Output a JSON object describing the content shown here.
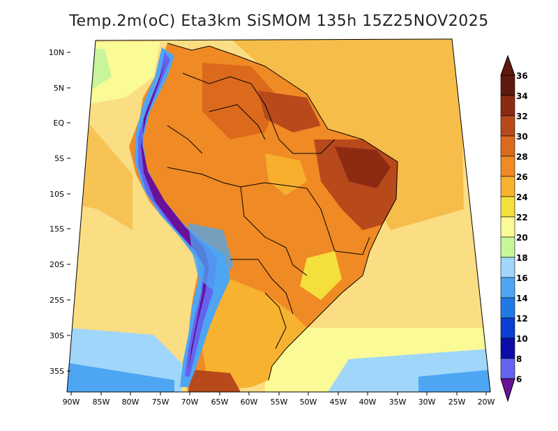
{
  "title": "Temp.2m(oC) Eta3km SiSMOM 135h 15Z25NOV2025",
  "lat_ticks": [
    "10N",
    "5N",
    "EQ",
    "5S",
    "10S",
    "15S",
    "20S",
    "25S",
    "30S",
    "35S"
  ],
  "lon_ticks": [
    "90W",
    "85W",
    "80W",
    "75W",
    "70W",
    "65W",
    "60W",
    "55W",
    "50W",
    "45W",
    "40W",
    "35W",
    "30W",
    "25W",
    "20W"
  ],
  "colorbar": {
    "labels": [
      "6",
      "8",
      "10",
      "12",
      "14",
      "16",
      "18",
      "20",
      "22",
      "24",
      "26",
      "28",
      "30",
      "32",
      "34",
      "36"
    ],
    "colors": [
      "#6a1199",
      "#9a3fcf",
      "#6464f0",
      "#0c0ca8",
      "#0a3fd1",
      "#1f7ae6",
      "#4ea6f2",
      "#9fd6fa",
      "#c9f59a",
      "#fafa96",
      "#f5df3c",
      "#f7b22f",
      "#f08a25",
      "#dc6a1c",
      "#b8491b",
      "#8c2a12",
      "#5e1a0c"
    ]
  },
  "colors": {
    "ocean": "#fbdd84",
    "ocean_north": "#f6bd4a",
    "ocean_south_cool": "#9fd6fa",
    "land_warm": "#f08a25",
    "land_hot": "#b8491b",
    "andes_cold": "#6464f0",
    "andes_core": "#6a1199"
  }
}
